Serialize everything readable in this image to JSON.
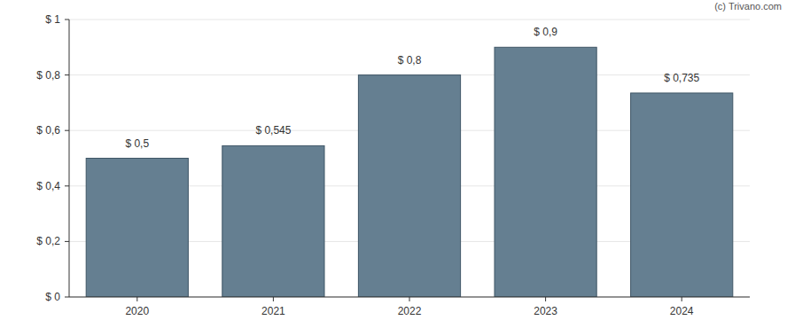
{
  "chart_data": {
    "type": "bar",
    "annotation": "(c) Trivano.com",
    "categories": [
      "2020",
      "2021",
      "2022",
      "2023",
      "2024"
    ],
    "values": [
      0.5,
      0.545,
      0.8,
      0.9,
      0.735
    ],
    "value_labels": [
      "$ 0,5",
      "$ 0,545",
      "$ 0,8",
      "$ 0,9",
      "$ 0,735"
    ],
    "data_labels": true,
    "color": "#657f91",
    "ylim": [
      0,
      1
    ],
    "yticks": [
      {
        "value": 0,
        "label": "$ 0"
      },
      {
        "value": 0.2,
        "label": "$ 0,2"
      },
      {
        "value": 0.4,
        "label": "$ 0,4"
      },
      {
        "value": 0.6,
        "label": "$ 0,6"
      },
      {
        "value": 0.8,
        "label": "$ 0,8"
      },
      {
        "value": 1,
        "label": "$ 1"
      }
    ],
    "grid": true
  }
}
